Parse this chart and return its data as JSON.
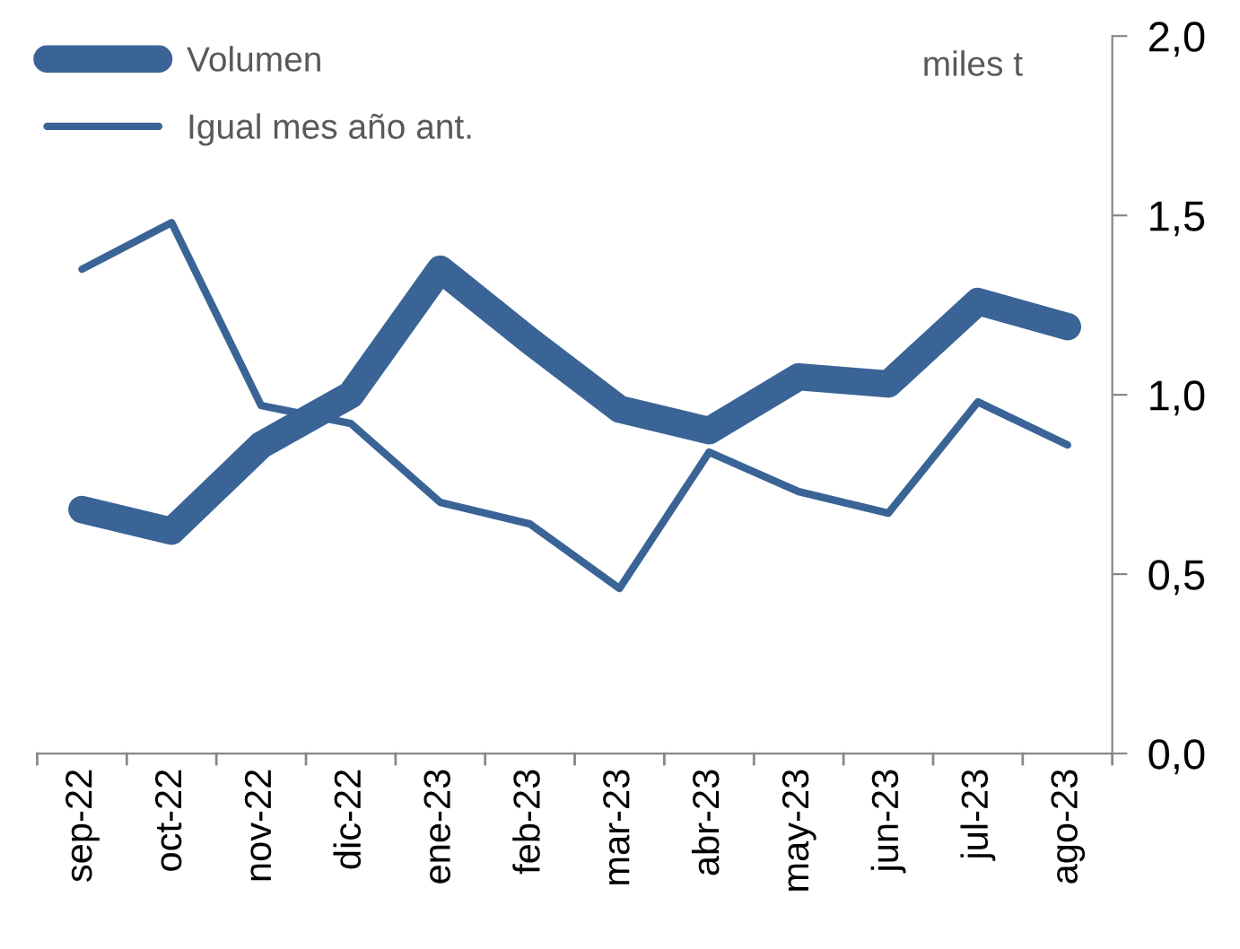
{
  "chart_data": {
    "type": "line",
    "ylabel": "miles t",
    "categories": [
      "sep-22",
      "oct-22",
      "nov-22",
      "dic-22",
      "ene-23",
      "feb-23",
      "mar-23",
      "abr-23",
      "may-23",
      "jun-23",
      "jul-23",
      "ago-23"
    ],
    "series": [
      {
        "name": "Volumen",
        "color": "#3a6496",
        "values": [
          0.68,
          0.62,
          0.86,
          1.0,
          1.35,
          1.15,
          0.96,
          0.9,
          1.05,
          1.03,
          1.26,
          1.19
        ]
      },
      {
        "name": "Igual mes año ant.",
        "color": "#3a6496",
        "values": [
          1.35,
          1.48,
          0.97,
          0.92,
          0.7,
          0.64,
          0.46,
          0.84,
          0.73,
          0.67,
          0.98,
          0.86
        ]
      }
    ],
    "ylim": [
      0,
      2
    ],
    "yticks": [
      {
        "value": 0,
        "label": "0,0"
      },
      {
        "value": 0.5,
        "label": "0,5"
      },
      {
        "value": 1,
        "label": "1,0"
      },
      {
        "value": 1.5,
        "label": "1,5"
      },
      {
        "value": 2,
        "label": "2,0"
      }
    ],
    "grid": false,
    "legend": "top left",
    "marker": "none",
    "line_style": "solid"
  }
}
